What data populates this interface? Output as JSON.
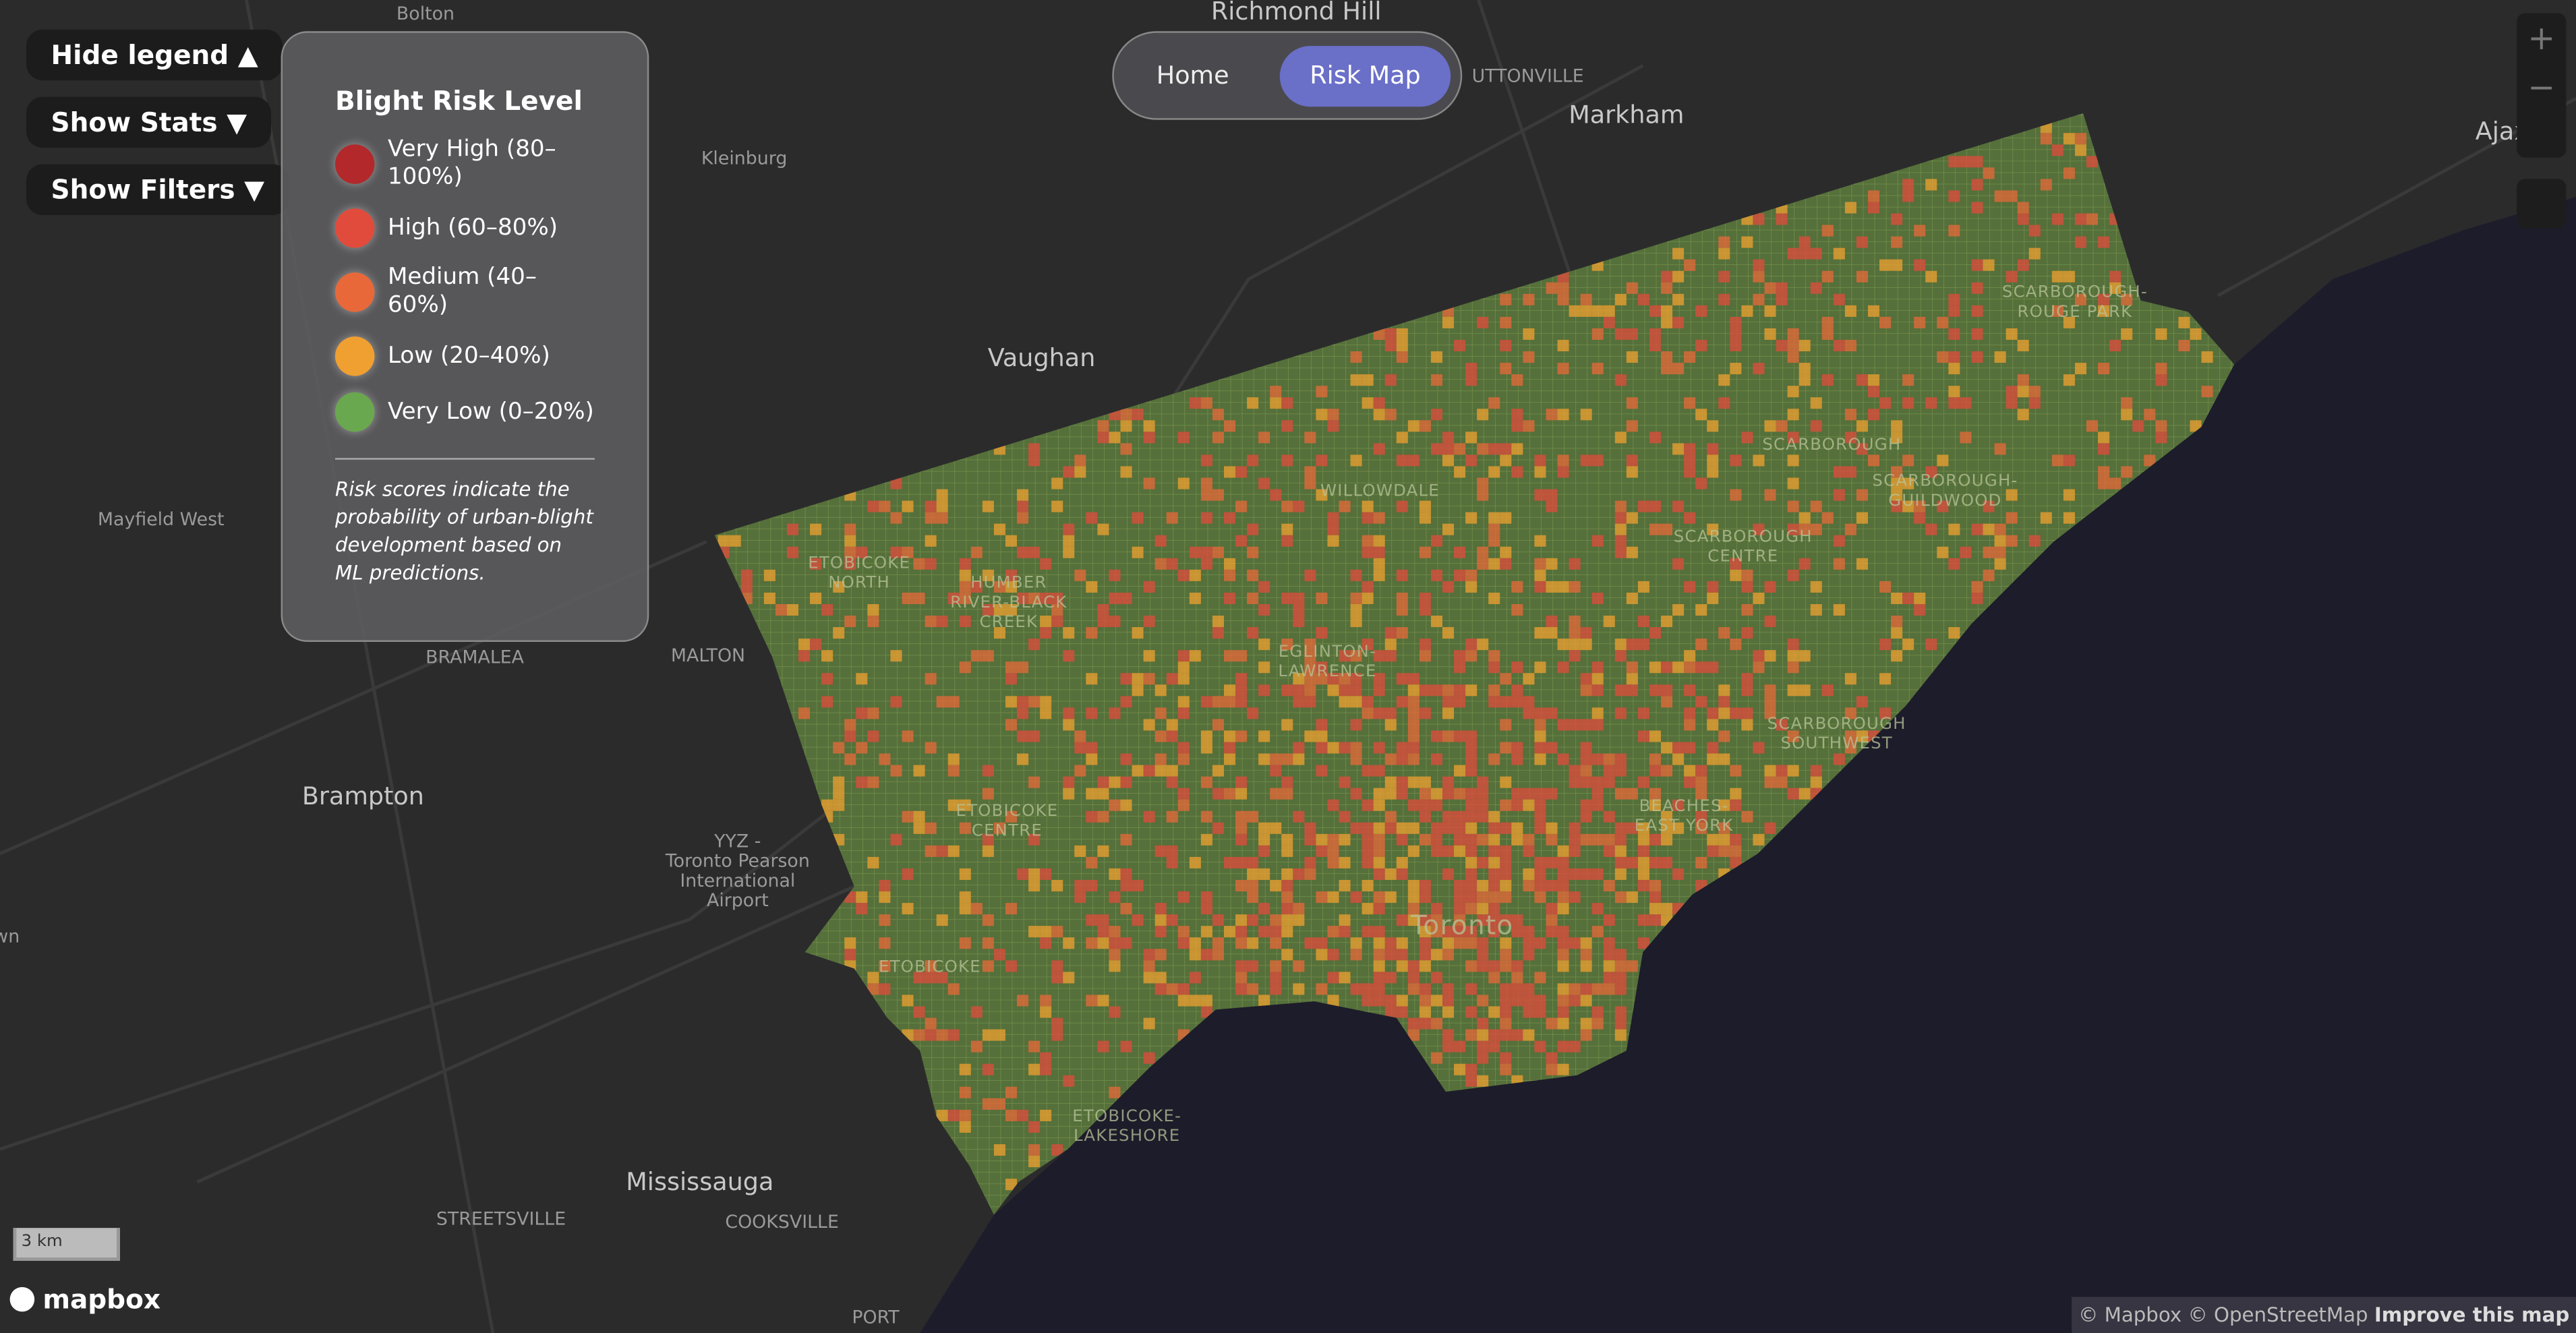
{
  "controls": {
    "hide_legend": "Hide legend ▲",
    "show_stats": "Show Stats ▼",
    "show_filters": "Show Filters ▼"
  },
  "nav": {
    "home": "Home",
    "risk_map": "Risk Map"
  },
  "legend": {
    "title": "Blight Risk Level",
    "items": [
      {
        "label": "Very High (80–100%)",
        "color": "#b3282a"
      },
      {
        "label": "High (60–80%)",
        "color": "#e04b3c"
      },
      {
        "label": "Medium (40–60%)",
        "color": "#e8683a"
      },
      {
        "label": "Low (20–40%)",
        "color": "#f0a030"
      },
      {
        "label": "Very Low (0–20%)",
        "color": "#6aa84f"
      }
    ],
    "note": "Risk scores indicate the probability of urban-blight development based on ML predictions."
  },
  "map": {
    "labels": [
      "Bolton",
      "Richmond Hill",
      "UTTONVILLE",
      "Markham",
      "Kleinburg",
      "Ajax",
      "Vaughan",
      "Mayfield West",
      "BRAMALEA",
      "MALTON",
      "Brampton",
      "YYZ -\nToronto Pearson\nInternational\nAirport",
      "Mississauga",
      "STREETSVILLE",
      "COOKSVILLE",
      "PORT",
      "ETOBICOKE\nNORTH",
      "HUMBER\nRIVER-BLACK\nCREEK",
      "WILLOWDALE",
      "EGLINTON-\nLAWRENCE",
      "ETOBICOKE\nCENTRE",
      "ETOBICOKE",
      "ETOBICOKE-\nLAKESHORE",
      "Toronto",
      "SCARBOROUGH-\nROUGE PARK",
      "SCARBOROUGH",
      "SCARBOROUGH-\nGUILDWOOD",
      "SCARBOROUGH\nCENTRE",
      "SCARBOROUGH\nSOUTHWEST",
      "BEACHES-\nEAST YORK",
      "wn"
    ]
  },
  "footer": {
    "scale": "3 km",
    "logo": "mapbox",
    "attribution": "© Mapbox © OpenStreetMap",
    "improve": "Improve this map"
  },
  "zoom": {
    "in": "+",
    "out": "−"
  }
}
